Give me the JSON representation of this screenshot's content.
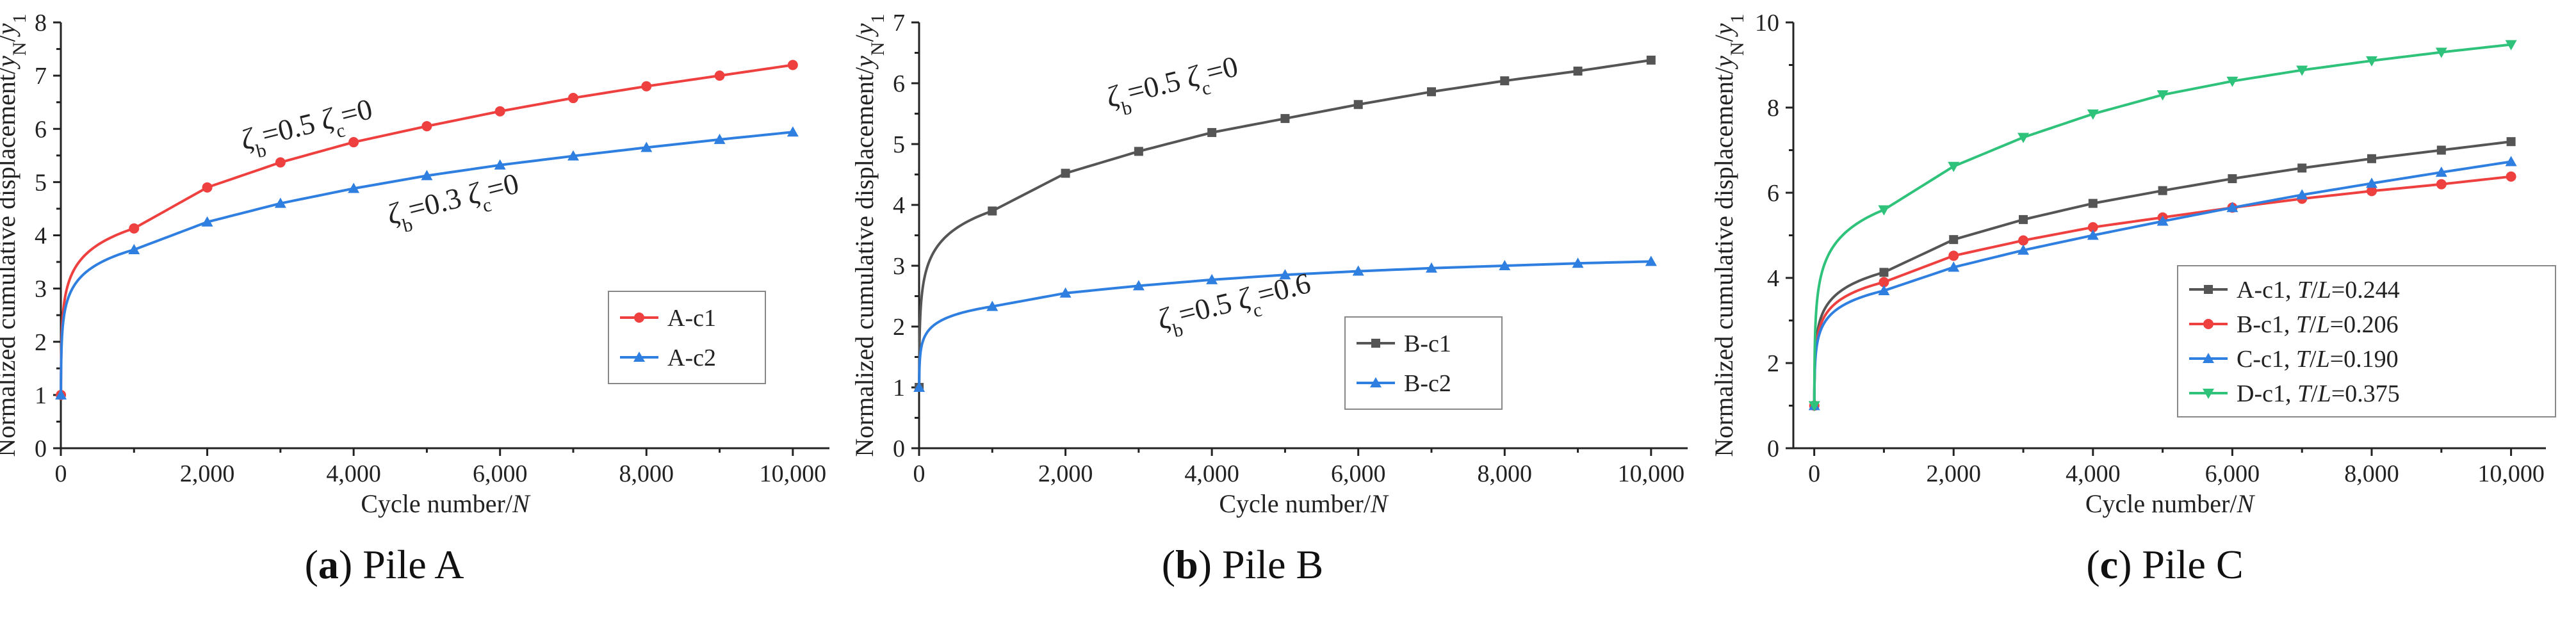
{
  "chart_data": [
    {
      "type": "line",
      "caption": {
        "letter": "a",
        "text": "Pile A"
      },
      "xlabel": "Cycle number/N",
      "ylabel": "Normalized cumulative displacement/yN/y1",
      "xlim": [
        0,
        10500
      ],
      "ylim": [
        0,
        8
      ],
      "x_ticks": [
        0,
        2000,
        4000,
        6000,
        8000,
        10000
      ],
      "x_tick_labels": [
        "0",
        "2,000",
        "4,000",
        "6,000",
        "8,000",
        "10,000"
      ],
      "y_ticks": [
        0,
        1,
        2,
        3,
        4,
        5,
        6,
        7,
        8
      ],
      "y_tick_labels": [
        "0",
        "1",
        "2",
        "3",
        "4",
        "5",
        "6",
        "7",
        "8"
      ],
      "legend": "right",
      "series": [
        {
          "name": "A-c1",
          "color": "#ef4040",
          "marker": "circle",
          "x": [
            1,
            1000,
            2000,
            3000,
            4000,
            5000,
            6000,
            7000,
            8000,
            9000,
            10000
          ],
          "values": [
            1.0,
            4.13,
            4.9,
            5.37,
            5.75,
            6.05,
            6.33,
            6.58,
            6.8,
            7.0,
            7.2
          ]
        },
        {
          "name": "A-c2",
          "color": "#2f7fe0",
          "marker": "triangle",
          "x": [
            1,
            1000,
            2000,
            3000,
            4000,
            5000,
            6000,
            7000,
            8000,
            9000,
            10000
          ],
          "values": [
            1.0,
            3.73,
            4.25,
            4.6,
            4.88,
            5.12,
            5.32,
            5.49,
            5.65,
            5.8,
            5.94
          ]
        }
      ],
      "annotations": [
        {
          "text_zeta_b": "ζb=0.5",
          "text_zeta_c": "ζc=0",
          "x": 2500,
          "y": 5.6
        },
        {
          "text_zeta_b": "ζb=0.3",
          "text_zeta_c": "ζc=0",
          "x": 4500,
          "y": 4.2
        }
      ]
    },
    {
      "type": "line",
      "caption": {
        "letter": "b",
        "text": "Pile B"
      },
      "xlabel": "Cycle number/N",
      "ylabel": "Normalized cumulative displacement/yN/y1",
      "xlim": [
        0,
        10500
      ],
      "ylim": [
        0,
        7
      ],
      "x_ticks": [
        0,
        2000,
        4000,
        6000,
        8000,
        10000
      ],
      "x_tick_labels": [
        "0",
        "2,000",
        "4,000",
        "6,000",
        "8,000",
        "10,000"
      ],
      "y_ticks": [
        0,
        1,
        2,
        3,
        4,
        5,
        6,
        7
      ],
      "y_tick_labels": [
        "0",
        "1",
        "2",
        "3",
        "4",
        "5",
        "6",
        "7"
      ],
      "legend": "right",
      "series": [
        {
          "name": "B-c1",
          "color": "#555555",
          "marker": "square",
          "x": [
            1,
            1000,
            2000,
            3000,
            4000,
            5000,
            6000,
            7000,
            8000,
            9000,
            10000
          ],
          "values": [
            1.0,
            3.9,
            4.52,
            4.88,
            5.19,
            5.42,
            5.65,
            5.86,
            6.04,
            6.2,
            6.38
          ]
        },
        {
          "name": "B-c2",
          "color": "#2f7fe0",
          "marker": "triangle",
          "x": [
            1,
            1000,
            2000,
            3000,
            4000,
            5000,
            6000,
            7000,
            8000,
            9000,
            10000
          ],
          "values": [
            1.0,
            2.33,
            2.55,
            2.67,
            2.77,
            2.85,
            2.91,
            2.96,
            3.0,
            3.04,
            3.07
          ]
        }
      ],
      "annotations": [
        {
          "text_zeta_b": "ζb=0.5",
          "text_zeta_c": "ζc=0",
          "x": 2600,
          "y": 5.6
        },
        {
          "text_zeta_b": "ζb=0.5",
          "text_zeta_c": "ζc=0.6",
          "x": 3300,
          "y": 1.95
        }
      ]
    },
    {
      "type": "line",
      "caption": {
        "letter": "c",
        "text": "Pile C"
      },
      "xlabel": "Cycle number/N",
      "ylabel": "Normalized cumulative displacement/yN/y1",
      "xlim": [
        -300,
        10500
      ],
      "ylim": [
        0,
        10
      ],
      "x_ticks": [
        0,
        2000,
        4000,
        6000,
        8000,
        10000
      ],
      "x_tick_labels": [
        "0",
        "2,000",
        "4,000",
        "6,000",
        "8,000",
        "10,000"
      ],
      "y_ticks": [
        0,
        2,
        4,
        6,
        8,
        10
      ],
      "y_tick_labels": [
        "0",
        "2",
        "4",
        "6",
        "8",
        "10"
      ],
      "legend": "right",
      "series": [
        {
          "name": "A-c1",
          "ratio": "T/L=0.244",
          "color": "#555555",
          "marker": "square",
          "x": [
            1,
            1000,
            2000,
            3000,
            4000,
            5000,
            6000,
            7000,
            8000,
            9000,
            10000
          ],
          "values": [
            1.0,
            4.13,
            4.9,
            5.37,
            5.75,
            6.05,
            6.33,
            6.58,
            6.8,
            7.0,
            7.2
          ]
        },
        {
          "name": "B-c1",
          "ratio": "T/L=0.206",
          "color": "#ef4040",
          "marker": "circle",
          "x": [
            1,
            1000,
            2000,
            3000,
            4000,
            5000,
            6000,
            7000,
            8000,
            9000,
            10000
          ],
          "values": [
            1.0,
            3.9,
            4.52,
            4.88,
            5.19,
            5.42,
            5.65,
            5.86,
            6.04,
            6.2,
            6.38
          ]
        },
        {
          "name": "C-c1",
          "ratio": "T/L=0.190",
          "color": "#2f7fe0",
          "marker": "triangle",
          "x": [
            1,
            1000,
            2000,
            3000,
            4000,
            5000,
            6000,
            7000,
            8000,
            9000,
            10000
          ],
          "values": [
            1.0,
            3.7,
            4.25,
            4.65,
            5.0,
            5.33,
            5.65,
            5.95,
            6.22,
            6.48,
            6.73
          ]
        },
        {
          "name": "D-c1",
          "ratio": "T/L=0.375",
          "color": "#2fc27a",
          "marker": "triangle-down",
          "x": [
            1,
            1000,
            2000,
            3000,
            4000,
            5000,
            6000,
            7000,
            8000,
            9000,
            10000
          ],
          "values": [
            1.0,
            5.6,
            6.62,
            7.3,
            7.85,
            8.3,
            8.62,
            8.88,
            9.1,
            9.3,
            9.48
          ]
        }
      ],
      "annotations": []
    }
  ]
}
